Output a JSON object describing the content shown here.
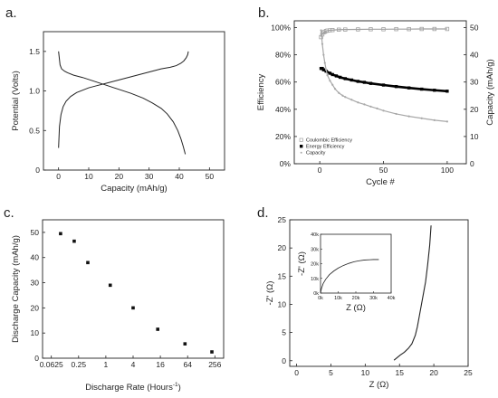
{
  "chart_data": [
    {
      "panel_label": "a.",
      "type": "line",
      "xlabel": "Capacity (mAh/g)",
      "ylabel": "Potential (Volts)",
      "xlim": [
        -5,
        55
      ],
      "ylim": [
        0,
        1.75
      ],
      "x_ticks": [
        0,
        10,
        20,
        30,
        40,
        50
      ],
      "y_ticks": [
        0,
        0.5,
        1.0,
        1.5
      ],
      "x_tick_labels": [
        "0",
        "10",
        "20",
        "30",
        "40",
        "50"
      ],
      "y_tick_labels": [
        "0",
        "0.5",
        "1.0",
        "1.5"
      ],
      "series": [
        {
          "x": [
            0,
            0.3,
            0.8,
            1.5,
            2.5,
            4,
            6,
            8,
            10,
            13,
            16,
            19,
            22,
            25,
            28,
            31,
            34,
            37,
            39,
            40.5,
            41.5,
            42.3,
            42.8,
            43
          ],
          "y": [
            0.28,
            0.55,
            0.7,
            0.8,
            0.87,
            0.93,
            0.98,
            1.01,
            1.04,
            1.07,
            1.1,
            1.13,
            1.16,
            1.19,
            1.22,
            1.25,
            1.28,
            1.3,
            1.32,
            1.35,
            1.38,
            1.42,
            1.46,
            1.5
          ]
        },
        {
          "x": [
            0,
            0.5,
            1,
            2,
            3,
            5,
            8,
            12,
            16,
            20,
            24,
            28,
            31,
            34,
            36,
            38,
            39.5,
            40.5,
            41.3,
            42
          ],
          "y": [
            1.5,
            1.33,
            1.28,
            1.25,
            1.23,
            1.2,
            1.17,
            1.12,
            1.07,
            1.02,
            0.97,
            0.91,
            0.85,
            0.78,
            0.71,
            0.61,
            0.5,
            0.4,
            0.3,
            0.2
          ]
        }
      ]
    },
    {
      "panel_label": "b.",
      "type": "scatter",
      "xlabel": "Cycle #",
      "ylabel": "Efficiency",
      "ylabel_right": "Capacity (mAh/g)",
      "xlim": [
        -20,
        115
      ],
      "ylim": [
        0,
        1.05
      ],
      "ylim_right": [
        0,
        52.5
      ],
      "x_ticks": [
        0,
        50,
        100
      ],
      "y_ticks": [
        0,
        0.2,
        0.4,
        0.6,
        0.8,
        1.0
      ],
      "y_right_ticks": [
        0,
        10,
        20,
        30,
        40,
        50
      ],
      "x_tick_labels": [
        "0",
        "50",
        "100"
      ],
      "y_tick_labels": [
        "0%",
        "20%",
        "40%",
        "60%",
        "80%",
        "100%"
      ],
      "y_right_tick_labels": [
        "0",
        "10",
        "20",
        "30",
        "40",
        "50"
      ],
      "legend": {
        "position": "bottom-left",
        "entries": [
          "Coulombic Efficiency",
          "Energy Efficiency",
          "Capacity"
        ]
      },
      "series": [
        {
          "name": "Coulombic Efficiency",
          "marker": "open-square",
          "color": "#a0a0a0",
          "x": [
            1,
            2,
            3,
            4,
            5,
            6,
            8,
            10,
            15,
            20,
            30,
            40,
            50,
            60,
            70,
            80,
            90,
            100
          ],
          "y": [
            0.93,
            0.95,
            0.965,
            0.97,
            0.975,
            0.978,
            0.98,
            0.982,
            0.985,
            0.986,
            0.987,
            0.988,
            0.988,
            0.989,
            0.989,
            0.99,
            0.99,
            0.99
          ]
        },
        {
          "name": "Energy Efficiency",
          "marker": "filled-square",
          "color": "#000000",
          "x": [
            1,
            2,
            3,
            5,
            8,
            10,
            13,
            16,
            20,
            25,
            30,
            35,
            40,
            50,
            60,
            70,
            80,
            90,
            100
          ],
          "y": [
            0.7,
            0.7,
            0.69,
            0.68,
            0.665,
            0.655,
            0.645,
            0.635,
            0.625,
            0.615,
            0.605,
            0.598,
            0.59,
            0.578,
            0.567,
            0.557,
            0.548,
            0.54,
            0.533
          ]
        },
        {
          "name": "Capacity",
          "marker": "dot",
          "color": "#a8a8a8",
          "axis": "right",
          "x": [
            1,
            2,
            3,
            4,
            5,
            6,
            8,
            10,
            12,
            15,
            18,
            20,
            25,
            30,
            35,
            40,
            45,
            50,
            60,
            70,
            80,
            90,
            100
          ],
          "y": [
            49,
            44,
            40,
            37,
            34.5,
            32.5,
            30.5,
            29,
            27.5,
            26,
            25,
            24.5,
            23.5,
            22.5,
            21.8,
            21,
            20.3,
            19.5,
            18.3,
            17.4,
            16.7,
            16,
            15.5
          ]
        }
      ]
    },
    {
      "panel_label": "c.",
      "type": "scatter",
      "xlabel": "Discharge Rate (Hours",
      "xlabel_sup": "-1",
      "xlabel_end": ")",
      "ylabel": "Discharge Capacity (mAh/g)",
      "x_scale": "log2",
      "xlim": [
        0.04,
        400
      ],
      "ylim": [
        0,
        55
      ],
      "x_ticks": [
        0.0625,
        0.25,
        1,
        4,
        16,
        64,
        256
      ],
      "y_ticks": [
        0,
        10,
        20,
        30,
        40,
        50
      ],
      "x_tick_labels": [
        "0.0625",
        "0.25",
        "1",
        "4",
        "16",
        "64",
        "256"
      ],
      "y_tick_labels": [
        "0",
        "10",
        "20",
        "30",
        "40",
        "50"
      ],
      "series": [
        {
          "marker": "filled-square",
          "x": [
            0.1,
            0.2,
            0.4,
            1.25,
            4,
            14,
            56,
            220
          ],
          "y": [
            49.5,
            46.5,
            38,
            29,
            20,
            11.5,
            5.7,
            2.5
          ]
        }
      ]
    },
    {
      "panel_label": "d.",
      "type": "line",
      "xlabel": "Z (Ω)",
      "ylabel": "-Z' (Ω)",
      "xlim": [
        -1,
        25
      ],
      "ylim": [
        -1,
        25
      ],
      "x_ticks": [
        0,
        5,
        10,
        15,
        20,
        25
      ],
      "y_ticks": [
        0,
        5,
        10,
        15,
        20,
        25
      ],
      "x_tick_labels": [
        "0",
        "5",
        "10",
        "15",
        "20",
        "25"
      ],
      "y_tick_labels": [
        "0",
        "5",
        "10",
        "15",
        "20",
        "25"
      ],
      "series": [
        {
          "x": [
            14.2,
            14.6,
            15.1,
            15.7,
            16.3,
            16.8,
            17.3,
            17.6,
            17.9,
            18.2,
            18.5,
            18.8,
            19.1,
            19.4,
            19.6
          ],
          "y": [
            0.1,
            0.5,
            1.0,
            1.5,
            2.2,
            3.0,
            4.5,
            6.0,
            8.0,
            10.0,
            12.0,
            14.0,
            17.0,
            20.5,
            24.0
          ]
        }
      ],
      "inset": {
        "xlabel": "Z (Ω)",
        "ylabel": "-Z' (Ω)",
        "xlim": [
          0,
          40000
        ],
        "ylim": [
          0,
          40000
        ],
        "x_ticks": [
          0,
          10000,
          20000,
          30000,
          40000
        ],
        "y_ticks": [
          0,
          10000,
          20000,
          30000,
          40000
        ],
        "x_tick_labels": [
          "0k",
          "10k",
          "20k",
          "30k",
          "40k"
        ],
        "y_tick_labels": [
          "0k",
          "10k",
          "20k",
          "30k",
          "40k"
        ],
        "series": [
          {
            "x": [
              0,
              500,
              1500,
              3000,
              5000,
              7500,
              10000,
              13000,
              16000,
              19000,
              22000,
              25000,
              28000,
              30000,
              33000
            ],
            "y": [
              0,
              3000,
              6500,
              9500,
              12500,
              15000,
              17000,
              18800,
              20200,
              21300,
              22000,
              22500,
              22700,
              22800,
              22800
            ]
          }
        ]
      }
    }
  ]
}
